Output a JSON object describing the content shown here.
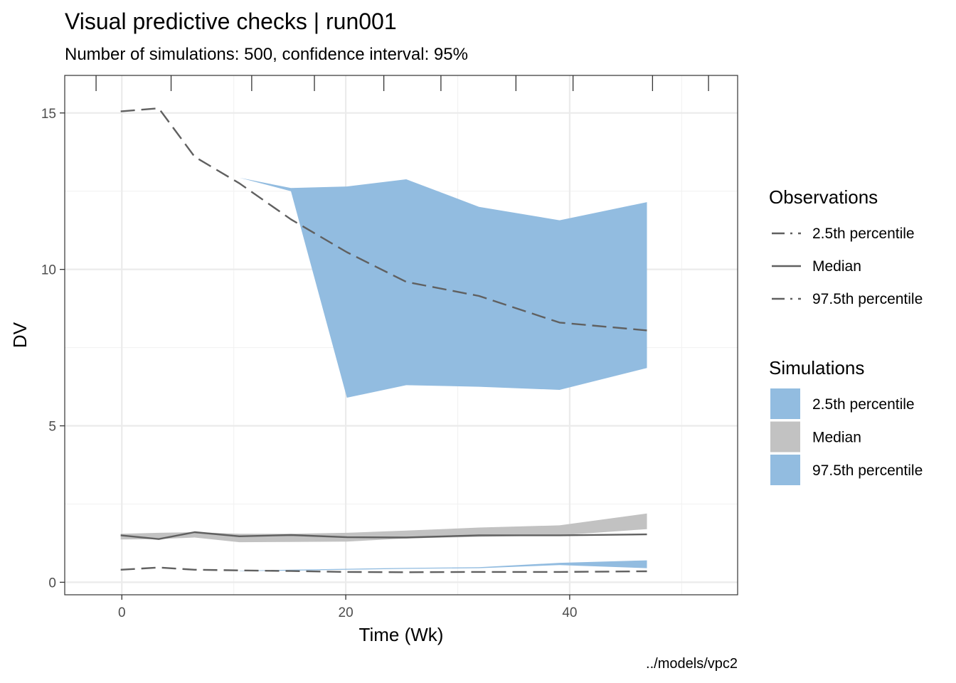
{
  "chart_data": {
    "type": "area",
    "title": "Visual predictive checks | run001",
    "subtitle": "Number of simulations: 500, confidence interval: 95%",
    "xlabel": "Time (Wk)",
    "ylabel": "DV",
    "caption": "../models/vpc2",
    "xlim": [
      -5.1,
      55
    ],
    "ylim": [
      -0.4,
      16.2
    ],
    "x_ticks": [
      0,
      20,
      40
    ],
    "x_minor_ticks": [
      10,
      30,
      50
    ],
    "y_ticks": [
      0,
      5,
      10,
      15
    ],
    "y_minor_ticks": [
      2.5,
      7.5,
      12.5
    ],
    "rug_x": [
      -2.3,
      4.4,
      11.6,
      17.2,
      23.4,
      28.5,
      35.2,
      40.3,
      47.4,
      52.4
    ],
    "grid": true,
    "legend_placement": "right",
    "colors": {
      "sim_tail": "#92bce0",
      "sim_median": "#c2c2c2",
      "obs_line": "#606060"
    },
    "observations": {
      "legend_title": "Observations",
      "series": [
        {
          "name": "2.5th percentile",
          "style": "dashed",
          "x": [
            -0.1,
            3.3,
            6.5,
            10.5,
            15.1,
            20.1,
            25.4,
            31.9,
            39.1,
            46.9
          ],
          "y": [
            0.4,
            0.47,
            0.4,
            0.38,
            0.36,
            0.33,
            0.32,
            0.33,
            0.33,
            0.35
          ]
        },
        {
          "name": "Median",
          "style": "solid",
          "x": [
            -0.1,
            3.3,
            6.5,
            10.5,
            15.1,
            20.1,
            25.4,
            31.9,
            39.1,
            46.9
          ],
          "y": [
            1.5,
            1.38,
            1.6,
            1.47,
            1.51,
            1.44,
            1.43,
            1.5,
            1.5,
            1.53
          ]
        },
        {
          "name": "97.5th percentile",
          "style": "dashed",
          "x": [
            -0.1,
            3.3,
            6.5,
            10.5,
            15.1,
            20.1,
            25.4,
            31.9,
            39.1,
            46.9
          ],
          "y": [
            15.05,
            15.15,
            13.6,
            12.75,
            11.6,
            10.55,
            9.6,
            9.15,
            8.3,
            8.05
          ]
        }
      ]
    },
    "simulations": {
      "legend_title": "Simulations",
      "series": [
        {
          "name": "2.5th percentile",
          "x": [
            10.5,
            15.1,
            20.1,
            25.4,
            31.9,
            39.1,
            46.9
          ],
          "lower": [
            0.36,
            0.37,
            0.4,
            0.43,
            0.45,
            0.55,
            0.45
          ],
          "upper": [
            0.37,
            0.4,
            0.43,
            0.46,
            0.48,
            0.62,
            0.7
          ]
        },
        {
          "name": "Median",
          "x": [
            -0.1,
            3.3,
            6.5,
            10.5,
            15.1,
            20.1,
            25.4,
            31.9,
            39.1,
            46.9
          ],
          "lower": [
            1.37,
            1.38,
            1.43,
            1.28,
            1.29,
            1.3,
            1.4,
            1.45,
            1.5,
            1.7
          ],
          "upper": [
            1.55,
            1.58,
            1.6,
            1.55,
            1.55,
            1.58,
            1.65,
            1.75,
            1.82,
            2.2
          ]
        },
        {
          "name": "97.5th percentile",
          "x": [
            10.5,
            15.1,
            20.1,
            25.4,
            31.9,
            39.1,
            46.9
          ],
          "lower": [
            12.93,
            12.5,
            5.9,
            6.3,
            6.25,
            6.15,
            6.85
          ],
          "upper": [
            12.93,
            12.6,
            12.65,
            12.88,
            12.0,
            11.57,
            12.15
          ]
        }
      ]
    }
  }
}
